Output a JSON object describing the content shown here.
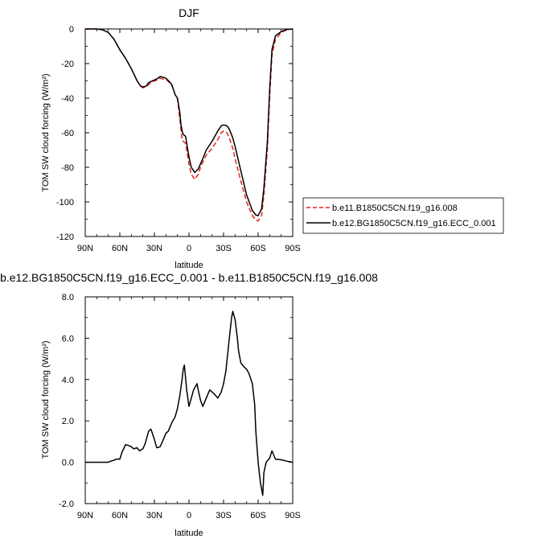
{
  "chart_data": [
    {
      "type": "line",
      "title": "DJF",
      "xlabel": "latitude",
      "ylabel": "TOM SW cloud forcing (W/m²)",
      "xlim": [
        90,
        -90
      ],
      "ylim": [
        -120,
        0
      ],
      "xticks": [
        {
          "value": 90,
          "label": "90N"
        },
        {
          "value": 60,
          "label": "60N"
        },
        {
          "value": 30,
          "label": "30N"
        },
        {
          "value": 0,
          "label": "0"
        },
        {
          "value": -30,
          "label": "30S"
        },
        {
          "value": -60,
          "label": "60S"
        },
        {
          "value": -90,
          "label": "90S"
        }
      ],
      "yticks": [
        {
          "value": 0,
          "label": "0"
        },
        {
          "value": -20,
          "label": "-20"
        },
        {
          "value": -40,
          "label": "-40"
        },
        {
          "value": -60,
          "label": "-60"
        },
        {
          "value": -80,
          "label": "-80"
        },
        {
          "value": -100,
          "label": "-100"
        },
        {
          "value": -120,
          "label": "-120"
        }
      ],
      "grid": false,
      "legend": "right",
      "series": [
        {
          "name": "b.e11.B1850C5CN.f19_g16.008",
          "color": "#e8231e",
          "dash": "dashed",
          "x": [
            90,
            80,
            75,
            70,
            65,
            60,
            55,
            50,
            45,
            42,
            40,
            37,
            35,
            30,
            27,
            25,
            22,
            20,
            17,
            15,
            12,
            10,
            8,
            7,
            6,
            5,
            3,
            2,
            0,
            -2,
            -5,
            -8,
            -10,
            -12,
            -15,
            -20,
            -25,
            -28,
            -30,
            -33,
            -35,
            -38,
            -40,
            -45,
            -50,
            -55,
            -58,
            -60,
            -63,
            -65,
            -68,
            -70,
            -72,
            -75,
            -80,
            -85,
            -90
          ],
          "y": [
            0,
            0,
            -0.5,
            -2,
            -6,
            -12,
            -17,
            -23,
            -30,
            -33,
            -34,
            -33.5,
            -32,
            -30,
            -29.5,
            -28.5,
            -29,
            -29,
            -31,
            -32.5,
            -38,
            -40.5,
            -52,
            -58,
            -64,
            -65,
            -66,
            -70,
            -78,
            -84,
            -87,
            -84,
            -80,
            -77,
            -73,
            -69,
            -64,
            -60,
            -59,
            -60,
            -63,
            -69,
            -75,
            -88,
            -100,
            -108,
            -110.5,
            -111,
            -108,
            -96,
            -70,
            -40,
            -15,
            -6,
            -2,
            -0.5,
            0
          ]
        },
        {
          "name": "b.e12.BG1850C5CN.f19_g16.ECC_0.001",
          "color": "#000000",
          "dash": "solid",
          "x": [
            90,
            80,
            75,
            70,
            65,
            60,
            55,
            50,
            45,
            42,
            40,
            37,
            35,
            30,
            27,
            25,
            22,
            20,
            17,
            15,
            12,
            10,
            8,
            7,
            6,
            5,
            3,
            2,
            0,
            -2,
            -5,
            -8,
            -10,
            -12,
            -15,
            -20,
            -25,
            -28,
            -30,
            -33,
            -35,
            -38,
            -40,
            -45,
            -50,
            -55,
            -58,
            -60,
            -63,
            -65,
            -68,
            -70,
            -72,
            -75,
            -80,
            -85,
            -90
          ],
          "y": [
            0,
            0,
            -0.5,
            -2,
            -6,
            -12,
            -17,
            -23,
            -30,
            -33,
            -33.5,
            -33,
            -31,
            -29.5,
            -28.5,
            -27.5,
            -28,
            -28.5,
            -30.5,
            -32,
            -38,
            -40,
            -48,
            -55,
            -59,
            -61,
            -62,
            -66,
            -74,
            -80,
            -83,
            -81,
            -78,
            -75,
            -70,
            -65,
            -59,
            -56,
            -55.5,
            -56,
            -58,
            -63,
            -68,
            -82,
            -96,
            -105,
            -107.5,
            -108,
            -104,
            -92,
            -65,
            -35,
            -12,
            -4,
            -1.5,
            -0.3,
            0
          ]
        }
      ]
    },
    {
      "type": "line",
      "title": "b.e12.BG1850C5CN.f19_g16.ECC_0.001 - b.e11.B1850C5CN.f19_g16.008",
      "xlabel": "latitude",
      "ylabel": "TOM SW cloud forcing (W/m²)",
      "xlim": [
        90,
        -90
      ],
      "ylim": [
        -2,
        8
      ],
      "xticks": [
        {
          "value": 90,
          "label": "90N"
        },
        {
          "value": 60,
          "label": "60N"
        },
        {
          "value": 30,
          "label": "30N"
        },
        {
          "value": 0,
          "label": "0"
        },
        {
          "value": -30,
          "label": "30S"
        },
        {
          "value": -60,
          "label": "60S"
        },
        {
          "value": -90,
          "label": "90S"
        }
      ],
      "yticks": [
        {
          "value": 8,
          "label": "8.0"
        },
        {
          "value": 6,
          "label": "6.0"
        },
        {
          "value": 4,
          "label": "4.0"
        },
        {
          "value": 2,
          "label": "2.0"
        },
        {
          "value": 0,
          "label": "0.0"
        },
        {
          "value": -2,
          "label": "-2.0"
        }
      ],
      "grid": false,
      "series": [
        {
          "color": "#000000",
          "dash": "solid",
          "x": [
            90,
            80,
            70,
            68,
            65,
            63,
            60,
            58,
            55,
            52,
            50,
            48,
            45,
            43,
            40,
            38,
            35,
            33,
            30,
            28,
            25,
            23,
            20,
            18,
            15,
            12,
            10,
            8,
            6,
            5,
            4,
            3,
            2,
            0,
            -2,
            -4,
            -5,
            -7,
            -8,
            -10,
            -12,
            -15,
            -18,
            -20,
            -22,
            -25,
            -28,
            -30,
            -32,
            -35,
            -37,
            -38,
            -40,
            -42,
            -43,
            -45,
            -48,
            -50,
            -52,
            -55,
            -57,
            -58,
            -60,
            -62,
            -64,
            -65,
            -67,
            -70,
            -72,
            -75,
            -80,
            -85,
            -90
          ],
          "y": [
            0,
            0,
            0,
            0.05,
            0.1,
            0.15,
            0.15,
            0.5,
            0.85,
            0.8,
            0.75,
            0.65,
            0.7,
            0.55,
            0.65,
            0.9,
            1.5,
            1.6,
            1.1,
            0.7,
            0.75,
            1.0,
            1.4,
            1.5,
            1.9,
            2.2,
            2.6,
            3.2,
            4.0,
            4.5,
            4.7,
            4.1,
            3.5,
            2.7,
            3.1,
            3.5,
            3.6,
            3.8,
            3.5,
            3.0,
            2.7,
            3.1,
            3.5,
            3.4,
            3.3,
            3.1,
            3.4,
            3.8,
            4.4,
            6.0,
            7.0,
            7.3,
            6.9,
            6.0,
            5.4,
            4.8,
            4.6,
            4.5,
            4.3,
            3.8,
            2.8,
            1.5,
            0.0,
            -1.0,
            -1.6,
            -0.5,
            0.0,
            0.2,
            0.55,
            0.15,
            0.12,
            0.05,
            0
          ]
        }
      ]
    }
  ]
}
